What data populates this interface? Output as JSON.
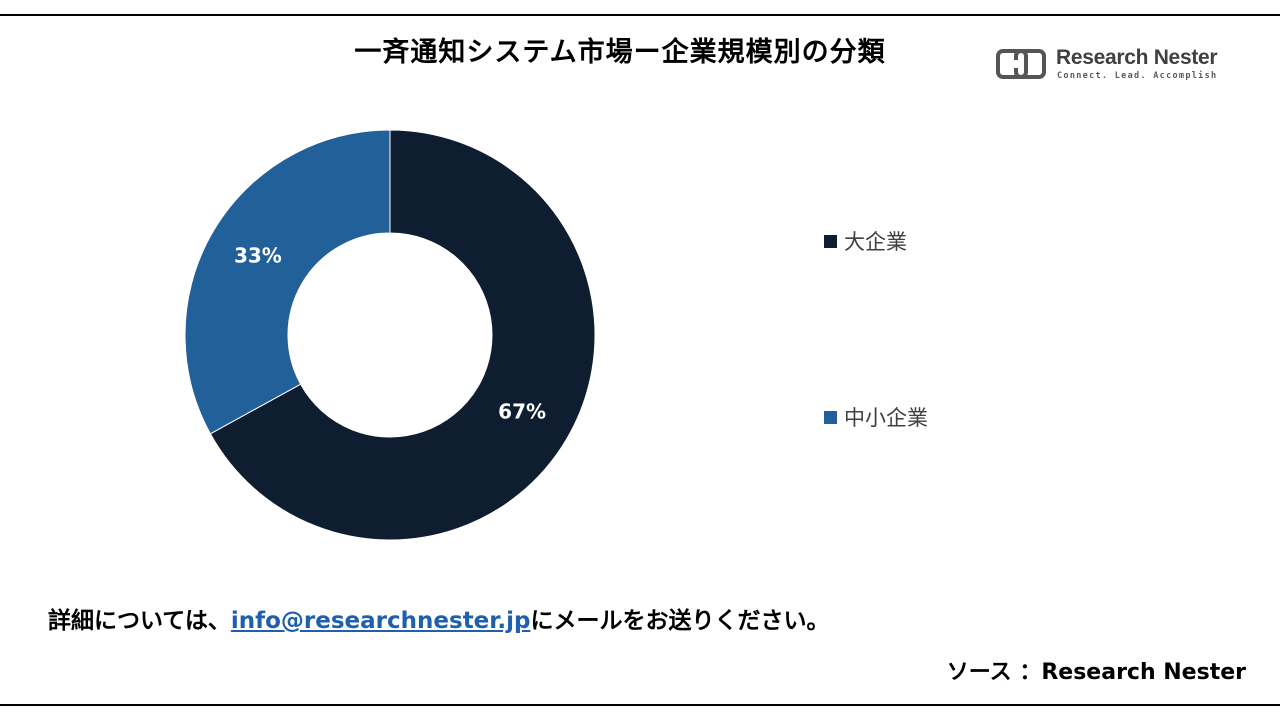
{
  "chart_data": {
    "type": "pie",
    "title": "一斉通知システム市場ー企業規模別の分類",
    "donut": true,
    "categories": [
      "大企業",
      "中小企業"
    ],
    "values": [
      67,
      33
    ],
    "labels": [
      "67%",
      "33%"
    ],
    "colors": [
      "#0e1e30",
      "#22609a"
    ],
    "legend_position": "right"
  },
  "logo": {
    "name": "Research Nester",
    "tagline": "Connect. Lead. Accomplish"
  },
  "footer": {
    "prefix": "詳細については、",
    "email": "info@researchnester.jp",
    "suffix": "にメールをお送りください。",
    "source": "ソース ：Research Nester"
  },
  "colors": {
    "label_text": "#ffffff",
    "link": "#1f5fb0",
    "legend_text": "#404040"
  }
}
